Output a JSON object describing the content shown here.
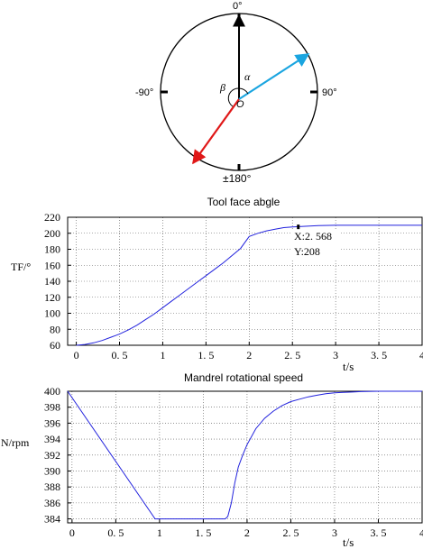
{
  "dial": {
    "labels": {
      "top": "0°",
      "left": "-90°",
      "right": "90°",
      "bottom": "±180°",
      "alpha": "α",
      "beta": "β",
      "origin": "O"
    },
    "colors": {
      "up": "#000000",
      "cyan": "#1aa5e0",
      "red": "#e01818"
    },
    "angles_deg": {
      "cyan": 60,
      "red": -145
    }
  },
  "chart_data": [
    {
      "type": "line",
      "title": "Tool face abgle",
      "xlabel": "t/s",
      "ylabel": "TF/°",
      "xlim": [
        -0.1,
        4.0
      ],
      "ylim": [
        60,
        220
      ],
      "xticks": [
        0,
        0.5,
        1,
        1.5,
        2,
        2.5,
        3,
        3.5,
        4
      ],
      "xtick_labels": [
        "0",
        "0. 5",
        "1",
        "1. 5",
        "2",
        "2. 5",
        "3",
        "3. 5",
        "4"
      ],
      "yticks": [
        60,
        80,
        100,
        120,
        140,
        160,
        180,
        200,
        220
      ],
      "grid": true,
      "line_color": "#2222dd",
      "series": [
        {
          "x": [
            0,
            0.1,
            0.2,
            0.3,
            0.4,
            0.5,
            0.6,
            0.7,
            0.8,
            0.9,
            1.0,
            1.1,
            1.2,
            1.3,
            1.4,
            1.5,
            1.6,
            1.7,
            1.8,
            1.9,
            2.0,
            2.1,
            2.2,
            2.3,
            2.4,
            2.5,
            2.6,
            2.7,
            2.8,
            3.0,
            3.2,
            3.5,
            4.0
          ],
          "y": [
            60,
            61,
            63,
            66,
            70,
            74,
            79,
            85,
            92,
            99,
            107,
            115,
            123,
            131,
            139,
            147,
            155,
            163,
            172,
            181,
            196,
            200,
            203,
            205,
            207,
            208,
            208.5,
            209,
            209.5,
            210,
            210,
            210,
            210
          ]
        }
      ],
      "annotation": {
        "x": 2.568,
        "y": 208,
        "text_x": "X:2. 568",
        "text_y": "Y:208"
      }
    },
    {
      "type": "line",
      "title": "Mandrel rotational speed",
      "xlabel": "t/s",
      "ylabel": "N/rpm",
      "xlim": [
        -0.05,
        4.0
      ],
      "ylim": [
        383.5,
        400
      ],
      "xticks": [
        0,
        0.5,
        1,
        1.5,
        2,
        2.5,
        3,
        3.5,
        4
      ],
      "xtick_labels": [
        "0",
        "0. 5",
        "1",
        "1. 5",
        "2",
        "2. 5",
        "3",
        "3. 5",
        "4"
      ],
      "yticks": [
        384,
        386,
        388,
        390,
        392,
        394,
        396,
        398,
        400
      ],
      "grid": true,
      "line_color": "#2222dd",
      "series": [
        {
          "x": [
            -0.05,
            0.95,
            1.0,
            1.75,
            1.78,
            1.82,
            1.86,
            1.9,
            1.95,
            2.0,
            2.1,
            2.2,
            2.3,
            2.4,
            2.5,
            2.6,
            2.7,
            2.8,
            2.9,
            3.0,
            3.1,
            3.2,
            3.3,
            3.5,
            4.0
          ],
          "y": [
            400,
            384,
            384,
            384,
            384.3,
            386,
            388.5,
            390.5,
            392,
            393.3,
            395.3,
            396.6,
            397.5,
            398.2,
            398.7,
            399.0,
            399.3,
            399.5,
            399.7,
            399.8,
            399.85,
            399.9,
            399.95,
            400,
            400
          ]
        }
      ]
    }
  ]
}
